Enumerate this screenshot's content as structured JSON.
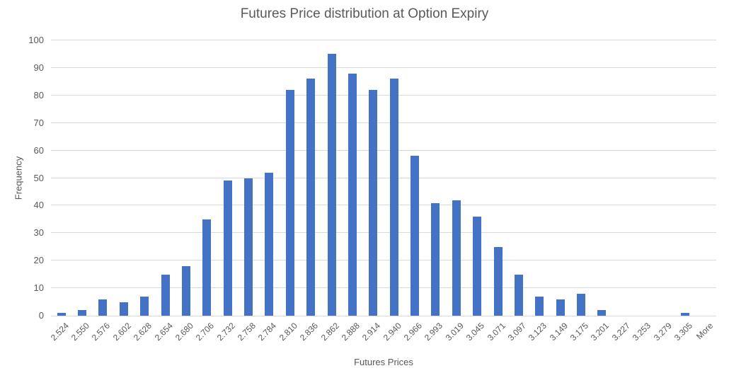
{
  "chart_data": {
    "type": "bar",
    "title": "Futures Price distribution at Option Expiry",
    "xlabel": "Futures Prices",
    "ylabel": "Frequency",
    "categories": [
      "2.524",
      "2.550",
      "2.576",
      "2.602",
      "2.628",
      "2.654",
      "2.680",
      "2.706",
      "2.732",
      "2.758",
      "2.784",
      "2.810",
      "2.836",
      "2.862",
      "2.888",
      "2.914",
      "2.940",
      "2.966",
      "2.993",
      "3.019",
      "3.045",
      "3.071",
      "3.097",
      "3.123",
      "3.149",
      "3.175",
      "3.201",
      "3.227",
      "3.253",
      "3.279",
      "3.305",
      "More"
    ],
    "values": [
      1,
      2,
      6,
      5,
      7,
      15,
      18,
      35,
      49,
      50,
      52,
      82,
      86,
      95,
      88,
      82,
      86,
      58,
      41,
      42,
      36,
      25,
      15,
      7,
      6,
      8,
      2,
      0,
      0,
      0,
      1,
      0
    ],
    "ylim": [
      0,
      100
    ],
    "yticks": [
      0,
      10,
      20,
      30,
      40,
      50,
      60,
      70,
      80,
      90,
      100
    ],
    "grid": true,
    "legend_position": "none",
    "colors": {
      "bar": "#4472C4",
      "gridline": "#D9D9D9",
      "text": "#595959",
      "background": "#FFFFFF"
    }
  }
}
